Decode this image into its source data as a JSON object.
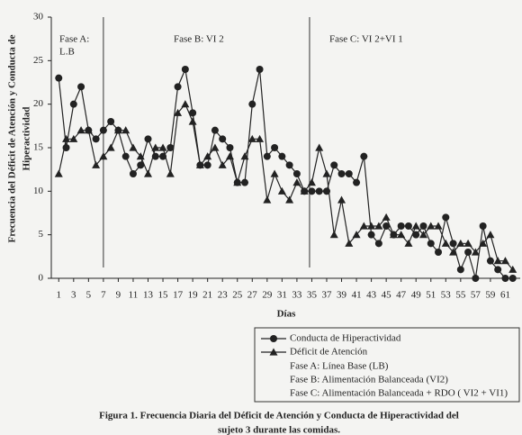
{
  "chart_data": {
    "type": "line",
    "x_label": "Días",
    "y_label": [
      "Frecuencia del Déficit de Atención y Conducta de",
      "Hiperactividad"
    ],
    "annotations": [
      "Fase A:",
      "L.B",
      "Fase B: VI 2",
      "Fase C: VI 2+VI 1"
    ],
    "phase_lines": [
      7,
      34.7
    ],
    "x": [
      1,
      2,
      3,
      4,
      5,
      6,
      7,
      8,
      9,
      10,
      11,
      12,
      13,
      14,
      15,
      16,
      17,
      18,
      19,
      20,
      21,
      22,
      23,
      24,
      25,
      26,
      27,
      28,
      29,
      30,
      31,
      32,
      33,
      34,
      35,
      36,
      37,
      38,
      39,
      40,
      41,
      42,
      43,
      44,
      45,
      46,
      47,
      48,
      49,
      50,
      51,
      52,
      53,
      54,
      55,
      56,
      57,
      58,
      59,
      60,
      61,
      62
    ],
    "series": [
      {
        "name": "Conducta de Hiperactividad",
        "color": "#222222",
        "marker": "circle",
        "values": [
          23,
          15,
          20,
          22,
          17,
          16,
          17,
          18,
          17,
          14,
          12,
          13,
          16,
          14,
          14,
          15,
          22,
          24,
          19,
          13,
          13,
          17,
          16,
          15,
          11,
          11,
          20,
          24,
          14,
          15,
          14,
          13,
          12,
          10,
          10,
          10,
          10,
          13,
          12,
          12,
          11,
          14,
          5,
          4,
          6,
          5,
          6,
          6,
          5,
          6,
          4,
          3,
          7,
          4,
          1,
          3,
          0,
          6,
          2,
          1,
          0,
          0
        ]
      },
      {
        "name": "Déficit de Atención",
        "color": "#222222",
        "marker": "triangle",
        "values": [
          12,
          16,
          16,
          17,
          17,
          13,
          14,
          15,
          17,
          17,
          15,
          14,
          12,
          15,
          15,
          12,
          19,
          20,
          18,
          13,
          14,
          15,
          13,
          14,
          11,
          14,
          16,
          16,
          9,
          12,
          10,
          9,
          11,
          10,
          11,
          15,
          12,
          5,
          9,
          4,
          5,
          6,
          6,
          6,
          7,
          5,
          5,
          4,
          6,
          5,
          6,
          6,
          4,
          3,
          4,
          4,
          3,
          4,
          5,
          2,
          2,
          1
        ]
      }
    ],
    "legend_notes": [
      "Fase A: Línea Base (LB)",
      "Fase B: Alimentación Balanceada (VI2)",
      "Fase C: Alimentación Balanceada + RDO ( VI2 + VI1)"
    ],
    "caption": [
      "Figura 1. Frecuencia Diaria del Déficit de Atención y Conducta de Hiperactividad del",
      "sujeto 3 durante las comidas."
    ],
    "xlim": [
      0,
      63
    ],
    "xticks": [
      1,
      3,
      5,
      7,
      9,
      11,
      13,
      15,
      17,
      19,
      21,
      23,
      25,
      27,
      29,
      31,
      33,
      35,
      37,
      39,
      41,
      43,
      45,
      47,
      49,
      51,
      53,
      55,
      57,
      59,
      61
    ],
    "ylim": [
      0,
      30
    ],
    "yticks": [
      0,
      5,
      10,
      15,
      20,
      25,
      30
    ]
  }
}
